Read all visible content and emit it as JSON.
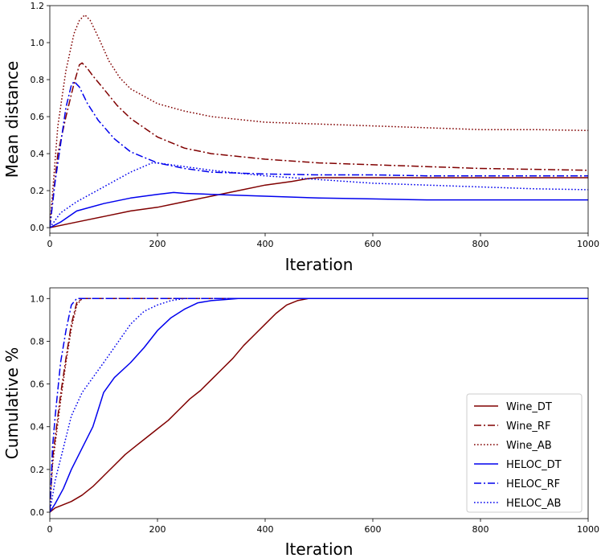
{
  "colors": {
    "wine": "#800000",
    "heloc": "#0000ee"
  },
  "chart_data": [
    {
      "type": "line",
      "title": "",
      "xlabel": "Iteration",
      "ylabel": "Mean distance",
      "xlim": [
        0,
        1000
      ],
      "ylim": [
        -0.03,
        1.2
      ],
      "xticks": [
        0,
        200,
        400,
        600,
        800,
        1000
      ],
      "yticks": [
        0.0,
        0.2,
        0.4,
        0.6,
        0.8,
        1.0,
        1.2
      ],
      "ytick_labels": [
        "0.0",
        "0.2",
        "0.4",
        "0.6",
        "0.8",
        "1.0",
        "1.2"
      ],
      "grid": false,
      "series": [
        {
          "name": "Wine_DT",
          "style": "solid",
          "color": "wine",
          "x": [
            0,
            50,
            100,
            150,
            200,
            250,
            300,
            350,
            400,
            450,
            480,
            500,
            600,
            700,
            800,
            900,
            1000
          ],
          "y": [
            0,
            0.03,
            0.06,
            0.09,
            0.11,
            0.14,
            0.17,
            0.2,
            0.23,
            0.25,
            0.265,
            0.27,
            0.27,
            0.27,
            0.27,
            0.27,
            0.27
          ]
        },
        {
          "name": "Wine_RF",
          "style": "dashdot",
          "color": "wine",
          "x": [
            0,
            15,
            30,
            45,
            55,
            60,
            70,
            80,
            100,
            125,
            150,
            200,
            250,
            300,
            400,
            500,
            600,
            700,
            800,
            900,
            1000
          ],
          "y": [
            0,
            0.4,
            0.6,
            0.78,
            0.88,
            0.89,
            0.86,
            0.82,
            0.75,
            0.66,
            0.59,
            0.49,
            0.43,
            0.4,
            0.37,
            0.35,
            0.34,
            0.33,
            0.32,
            0.315,
            0.31
          ]
        },
        {
          "name": "Wine_AB",
          "style": "dotted",
          "color": "wine",
          "x": [
            0,
            15,
            30,
            45,
            55,
            65,
            75,
            90,
            110,
            130,
            150,
            200,
            250,
            300,
            400,
            500,
            600,
            700,
            800,
            900,
            1000
          ],
          "y": [
            0,
            0.55,
            0.85,
            1.05,
            1.12,
            1.15,
            1.12,
            1.03,
            0.9,
            0.81,
            0.75,
            0.67,
            0.63,
            0.6,
            0.57,
            0.56,
            0.55,
            0.54,
            0.53,
            0.53,
            0.525
          ]
        },
        {
          "name": "HELOC_DT",
          "style": "solid",
          "color": "heloc",
          "x": [
            0,
            20,
            50,
            100,
            150,
            200,
            230,
            250,
            300,
            400,
            500,
            600,
            700,
            800,
            900,
            1000
          ],
          "y": [
            0,
            0.03,
            0.09,
            0.13,
            0.16,
            0.18,
            0.19,
            0.185,
            0.18,
            0.17,
            0.16,
            0.155,
            0.15,
            0.15,
            0.15,
            0.15
          ]
        },
        {
          "name": "HELOC_RF",
          "style": "dashdot",
          "color": "heloc",
          "x": [
            0,
            10,
            20,
            30,
            40,
            45,
            55,
            70,
            90,
            120,
            150,
            200,
            250,
            300,
            400,
            500,
            600,
            700,
            800,
            900,
            1000
          ],
          "y": [
            0,
            0.25,
            0.45,
            0.65,
            0.77,
            0.79,
            0.76,
            0.67,
            0.58,
            0.48,
            0.41,
            0.35,
            0.32,
            0.3,
            0.29,
            0.285,
            0.285,
            0.28,
            0.28,
            0.28,
            0.28
          ]
        },
        {
          "name": "HELOC_AB",
          "style": "dotted",
          "color": "heloc",
          "x": [
            0,
            20,
            50,
            100,
            150,
            190,
            200,
            250,
            300,
            400,
            500,
            600,
            700,
            800,
            900,
            1000
          ],
          "y": [
            0,
            0.08,
            0.14,
            0.22,
            0.3,
            0.35,
            0.35,
            0.33,
            0.31,
            0.28,
            0.26,
            0.24,
            0.23,
            0.22,
            0.21,
            0.205
          ]
        }
      ]
    },
    {
      "type": "line",
      "title": "",
      "xlabel": "Iteration",
      "ylabel": "Cumulative %",
      "xlim": [
        0,
        1000
      ],
      "ylim": [
        -0.03,
        1.05
      ],
      "xticks": [
        0,
        200,
        400,
        600,
        800,
        1000
      ],
      "yticks": [
        0.0,
        0.2,
        0.4,
        0.6,
        0.8,
        1.0
      ],
      "ytick_labels": [
        "0.0",
        "0.2",
        "0.4",
        "0.6",
        "0.8",
        "1.0"
      ],
      "grid": false,
      "legend": "bottom-right",
      "series": [
        {
          "name": "Wine_DT",
          "style": "solid",
          "color": "wine",
          "x": [
            0,
            10,
            20,
            40,
            60,
            80,
            100,
            120,
            140,
            160,
            180,
            200,
            220,
            240,
            260,
            280,
            300,
            320,
            340,
            360,
            380,
            400,
            420,
            440,
            460,
            480,
            500,
            520,
            600,
            700,
            800,
            900,
            1000
          ],
          "y": [
            0,
            0.02,
            0.03,
            0.05,
            0.08,
            0.12,
            0.17,
            0.22,
            0.27,
            0.31,
            0.35,
            0.39,
            0.43,
            0.48,
            0.53,
            0.57,
            0.62,
            0.67,
            0.72,
            0.78,
            0.83,
            0.88,
            0.93,
            0.97,
            0.99,
            1.0,
            1.0,
            1.0,
            1.0,
            1.0,
            1.0,
            1.0,
            1.0
          ]
        },
        {
          "name": "Wine_RF",
          "style": "dashdot",
          "color": "wine",
          "x": [
            0,
            5,
            10,
            20,
            30,
            40,
            50,
            60,
            100,
            200,
            400,
            600,
            800,
            1000
          ],
          "y": [
            0,
            0.25,
            0.35,
            0.55,
            0.72,
            0.88,
            0.98,
            1.0,
            1.0,
            1.0,
            1.0,
            1.0,
            1.0,
            1.0
          ]
        },
        {
          "name": "Wine_AB",
          "style": "dotted",
          "color": "wine",
          "x": [
            0,
            5,
            10,
            20,
            30,
            40,
            50,
            60,
            100,
            200,
            400,
            600,
            800,
            1000
          ],
          "y": [
            0,
            0.22,
            0.32,
            0.52,
            0.7,
            0.86,
            0.97,
            1.0,
            1.0,
            1.0,
            1.0,
            1.0,
            1.0,
            1.0
          ]
        },
        {
          "name": "HELOC_DT",
          "style": "solid",
          "color": "heloc",
          "x": [
            0,
            10,
            25,
            40,
            60,
            80,
            90,
            100,
            120,
            150,
            175,
            200,
            225,
            250,
            275,
            300,
            325,
            350,
            400,
            500,
            600,
            800,
            1000
          ],
          "y": [
            0,
            0.04,
            0.11,
            0.2,
            0.3,
            0.4,
            0.48,
            0.56,
            0.63,
            0.7,
            0.77,
            0.85,
            0.91,
            0.95,
            0.98,
            0.99,
            0.995,
            1.0,
            1.0,
            1.0,
            1.0,
            1.0,
            1.0
          ]
        },
        {
          "name": "HELOC_RF",
          "style": "dashdot",
          "color": "heloc",
          "x": [
            0,
            5,
            10,
            20,
            30,
            40,
            50,
            60,
            100,
            200,
            400,
            600,
            800,
            1000
          ],
          "y": [
            0,
            0.3,
            0.45,
            0.7,
            0.85,
            0.97,
            1.0,
            1.0,
            1.0,
            1.0,
            1.0,
            1.0,
            1.0,
            1.0
          ]
        },
        {
          "name": "HELOC_AB",
          "style": "dotted",
          "color": "heloc",
          "x": [
            0,
            10,
            25,
            40,
            60,
            80,
            100,
            125,
            150,
            175,
            200,
            225,
            250,
            300,
            400,
            600,
            800,
            1000
          ],
          "y": [
            0,
            0.15,
            0.3,
            0.45,
            0.56,
            0.63,
            0.7,
            0.79,
            0.88,
            0.94,
            0.97,
            0.99,
            1.0,
            1.0,
            1.0,
            1.0,
            1.0,
            1.0
          ]
        }
      ]
    }
  ]
}
